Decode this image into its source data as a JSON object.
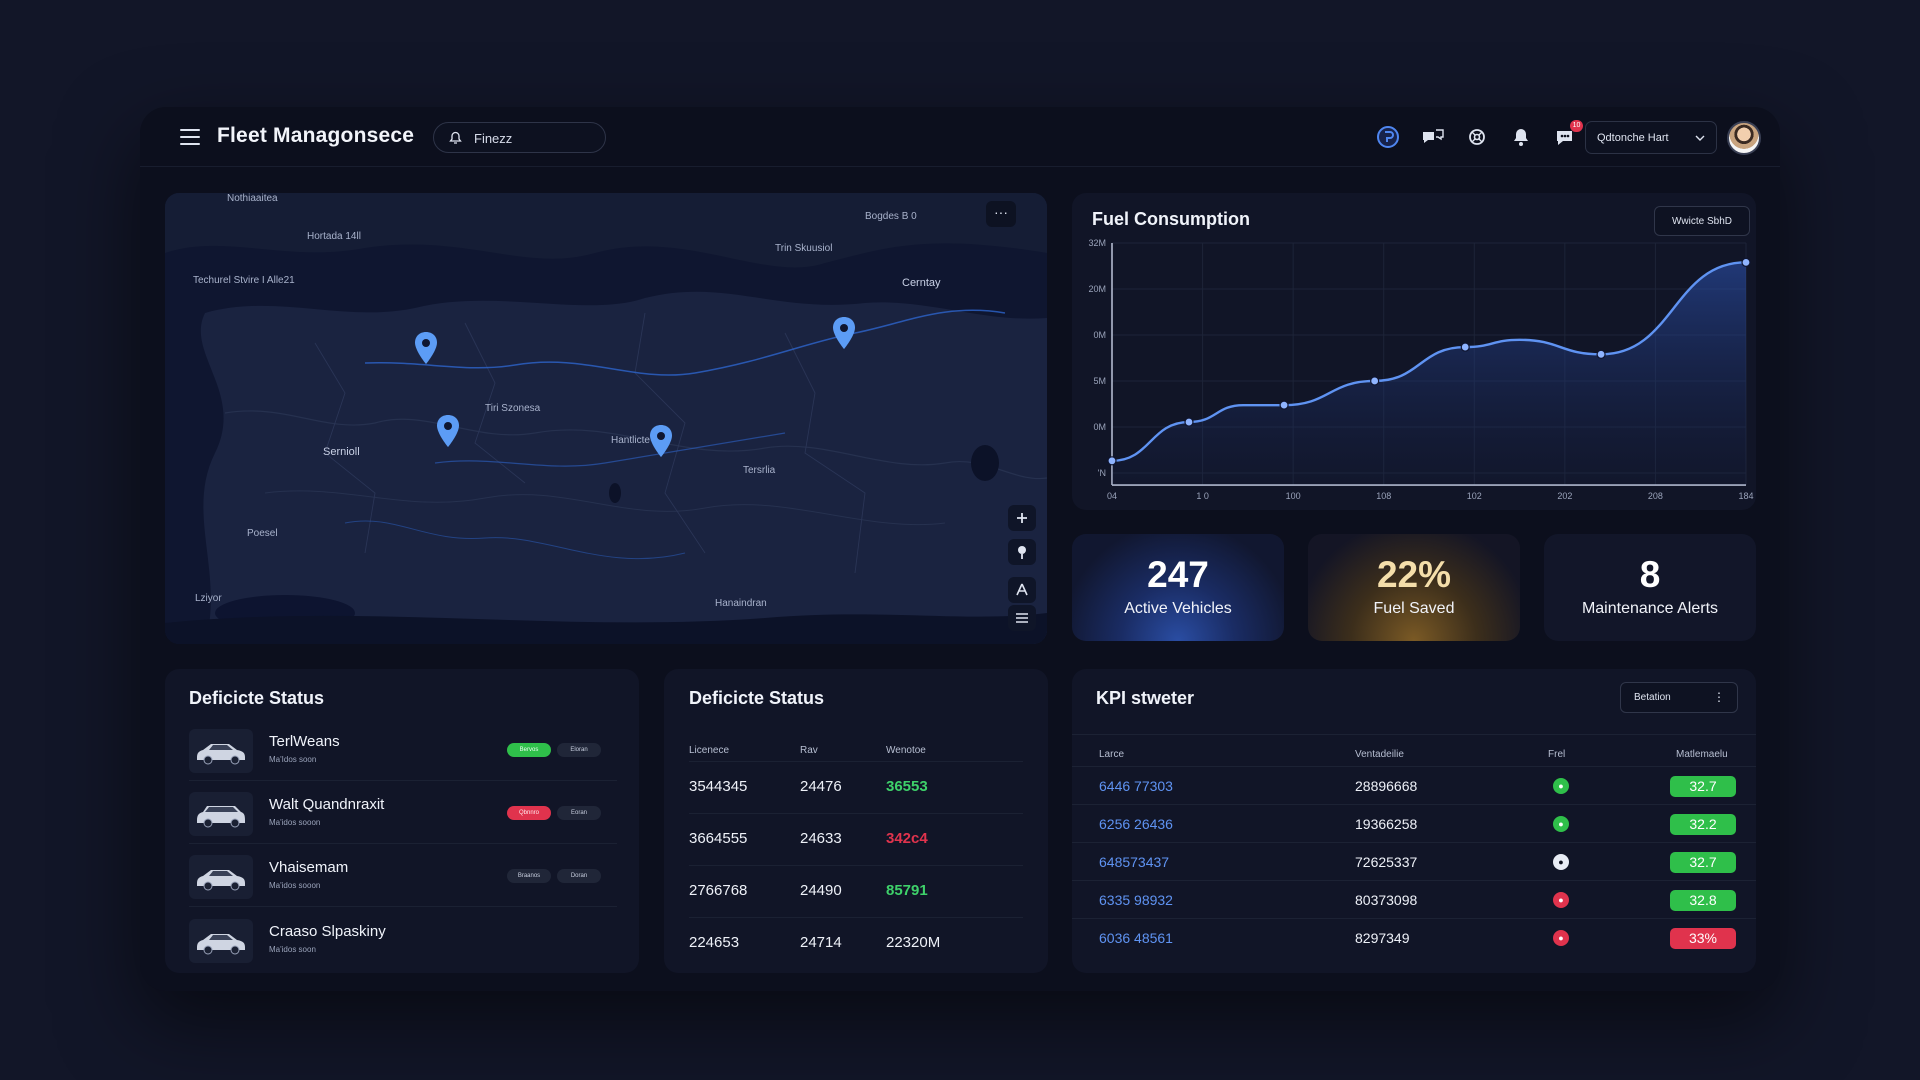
{
  "header": {
    "title": "Fleet Managonsece",
    "search_placeholder": "Finezz",
    "user_label": "Qdtonche Hart",
    "message_badge": "10"
  },
  "icons": [
    "menu-icon",
    "search-icon",
    "globe-icon",
    "chat-icon",
    "support-icon",
    "bell-icon",
    "message-icon",
    "chevron-down-icon",
    "more-icon",
    "zoom-icon",
    "pin-icon",
    "layers-icon",
    "filter-icon",
    "location-pin-icon",
    "car-icon",
    "status-dot-icon"
  ],
  "colors": {
    "accent": "#5f93f2",
    "green": "#2fbf4a",
    "red": "#e0334d",
    "background": "#0c0f1d"
  },
  "map": {
    "labels": [
      "Nothiaaitea",
      "Hortada 14ll",
      "Techurel Stvire I Alle21",
      "Sernioll",
      "Bogdes B 0",
      "Trin Skuusiol",
      "Cerntay",
      "Tersrlia",
      "Poesel",
      "Lziyor",
      "Hanaindran",
      "Tiri Szonesa",
      "Hantlicte"
    ]
  },
  "fuel": {
    "title": "Fuel Consumption",
    "button": "Wwicte SbhD",
    "chart_data": {
      "type": "area",
      "title": "Fuel Consumption",
      "x_tick_labels": [
        "04",
        "1 0",
        "100",
        "108",
        "102",
        "202",
        "208",
        "184"
      ],
      "y_tick_labels": [
        "32M",
        "20M",
        "0M",
        "5M",
        "0M",
        "'N"
      ],
      "points": [
        {
          "i": 0,
          "v": 1.0
        },
        {
          "i": 0.85,
          "v": 2.6
        },
        {
          "i": 1.45,
          "v": 3.3
        },
        {
          "i": 1.9,
          "v": 3.3
        },
        {
          "i": 2.9,
          "v": 4.3
        },
        {
          "i": 3.9,
          "v": 5.7
        },
        {
          "i": 4.5,
          "v": 6.0
        },
        {
          "i": 5.4,
          "v": 5.4
        },
        {
          "i": 7.0,
          "v": 9.2
        }
      ],
      "marker_indices": [
        0,
        1,
        3,
        4,
        5,
        7,
        8
      ],
      "grid": true
    }
  },
  "kpi_cards": [
    {
      "value": "247",
      "label": "Active Vehicles"
    },
    {
      "value": "22%",
      "label": "Fuel Saved"
    },
    {
      "value": "8",
      "label": "Maintenance Alerts"
    }
  ],
  "status_vehicles": {
    "title": "Deficicte Status",
    "items": [
      {
        "name": "TerlWeans",
        "sub": "Ma'Idos soon",
        "pill1": "Bervos",
        "pill2": "Eloran",
        "pill1_color": "#2fbf4a"
      },
      {
        "name": "Walt Quandnraxit",
        "sub": "Ma'idos sooon",
        "pill1": "Qbnnro",
        "pill2": "Eoran",
        "pill1_color": "#e0334d"
      },
      {
        "name": "Vhaisemam",
        "sub": "Ma'idos sooon",
        "pill1": "Braanos",
        "pill2": "Doran",
        "pill1_color": "#202638"
      },
      {
        "name": "Craaso Slpaskiny",
        "sub": "Ma'idos soon",
        "pill1": "",
        "pill2": "",
        "pill1_color": ""
      }
    ]
  },
  "status_table": {
    "title": "Deficicte Status",
    "headers": [
      "Licenece",
      "Rav",
      "Wenotoe"
    ],
    "rows": [
      {
        "c1": "3544345",
        "c2": "24476",
        "c3": "36553",
        "c3_color": "#3ed16a"
      },
      {
        "c1": "3664555",
        "c2": "24633",
        "c3": "342c4",
        "c3_color": "#e0334d"
      },
      {
        "c1": "2766768",
        "c2": "24490",
        "c3": "85791",
        "c3_color": "#3ed16a"
      },
      {
        "c1": "224653",
        "c2": "24714",
        "c3": "22320M",
        "c3_color": "#eef1f8"
      }
    ]
  },
  "kpi_table": {
    "title": "KPI stweter",
    "button": "Betation",
    "headers": [
      "Larce",
      "Ventadeilie",
      "Frel",
      "Matlemaelu"
    ],
    "rows": [
      {
        "id": "6446 77303",
        "num": "28896668",
        "dot_color": "#2fbf4a",
        "dot": "",
        "value": "32.7",
        "badge_color": "#2fbf4a"
      },
      {
        "id": "6256 26436",
        "num": "19366258",
        "dot_color": "#2fbf4a",
        "dot": "",
        "value": "32.2",
        "badge_color": "#2fbf4a"
      },
      {
        "id": "648573437",
        "num": "72625337",
        "dot_color": "#e8ecf5",
        "dot": "",
        "value": "32.7",
        "badge_color": "#2fbf4a"
      },
      {
        "id": "6335 98932",
        "num": "80373098",
        "dot_color": "#e0334d",
        "dot": "",
        "value": "32.8",
        "badge_color": "#2fbf4a"
      },
      {
        "id": "6036 48561",
        "num": "8297349",
        "dot_color": "#e0334d",
        "dot": "",
        "value": "33%",
        "badge_color": "#e0334d"
      }
    ]
  }
}
